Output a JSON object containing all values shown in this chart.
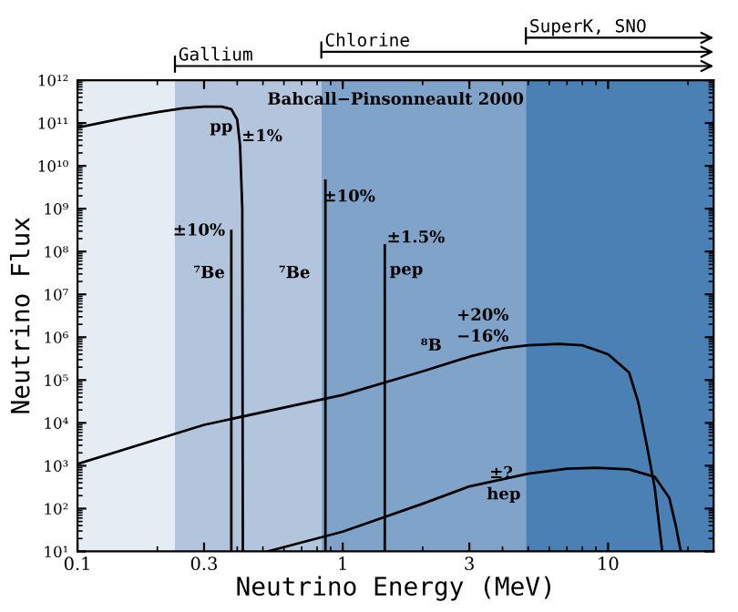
{
  "chart_data": {
    "type": "line",
    "title": "Bahcall−Pinsonneault 2000",
    "xlabel": "Neutrino Energy (MeV)",
    "ylabel": "Neutrino Flux",
    "log": "xy",
    "grid": false,
    "legend": false,
    "marker": "none",
    "line_style": "solid",
    "xlim": [
      0.1,
      25
    ],
    "ylim": [
      10,
      1000000000000.0
    ],
    "xticks": [
      0.1,
      0.3,
      1,
      3,
      10
    ],
    "yticks": [
      {
        "value": 10,
        "label": "10¹"
      },
      {
        "value": 100,
        "label": "10²"
      },
      {
        "value": 1000,
        "label": "10³"
      },
      {
        "value": 10000,
        "label": "10⁴"
      },
      {
        "value": 100000,
        "label": "10⁵"
      },
      {
        "value": 1000000,
        "label": "10⁶"
      },
      {
        "value": 10000000,
        "label": "10⁷"
      },
      {
        "value": 100000000,
        "label": "10⁸"
      },
      {
        "value": 1000000000,
        "label": "10⁹"
      },
      {
        "value": 10000000000,
        "label": "10¹⁰"
      },
      {
        "value": 100000000000,
        "label": "10¹¹"
      },
      {
        "value": 1000000000000,
        "label": "10¹²"
      }
    ],
    "bands": [
      {
        "axis": "x",
        "from": 0.1,
        "to": 0.233,
        "label": null,
        "color": "#e6ecf4"
      },
      {
        "axis": "x",
        "from": 0.233,
        "to": 0.83,
        "label": "Gallium",
        "color": "#b3c5dd"
      },
      {
        "axis": "x",
        "from": 0.83,
        "to": 4.9,
        "label": "Chlorine",
        "color": "#80a3ca"
      },
      {
        "axis": "x",
        "from": 4.9,
        "to": 25,
        "label": "SuperK, SNO",
        "color": "#4a80b4"
      }
    ],
    "series": [
      {
        "color": "#000000",
        "x": [
          0.1,
          0.15,
          0.2,
          0.25,
          0.3,
          0.35,
          0.38,
          0.4,
          0.41,
          0.418,
          0.42
        ],
        "values": [
          78000000000,
          130000000000,
          180000000000,
          220000000000,
          240000000000,
          240000000000,
          210000000000,
          120000000000,
          30000000000,
          1000000000,
          10
        ]
      },
      {
        "color": "#000000",
        "x": [
          0.38,
          0.38
        ],
        "values": [
          10,
          300000000
        ]
      },
      {
        "color": "#000000",
        "x": [
          0.86,
          0.86
        ],
        "values": [
          10,
          4500000000
        ]
      },
      {
        "color": "#000000",
        "x": [
          1.44,
          1.44
        ],
        "values": [
          10,
          140000000
        ]
      },
      {
        "color": "#000000",
        "x": [
          0.1,
          0.3,
          1,
          2,
          3,
          4,
          5,
          6.5,
          8,
          10,
          12,
          13,
          14,
          15,
          16
        ],
        "values": [
          1100,
          9000,
          45000,
          160000,
          350000,
          550000,
          650000,
          700000,
          650000,
          400000,
          150000,
          30000,
          3000,
          300,
          10
        ]
      },
      {
        "color": "#000000",
        "x": [
          0.52,
          1,
          2,
          3,
          5,
          7,
          9,
          12,
          15,
          17,
          18,
          18.8
        ],
        "values": [
          10,
          29,
          130,
          330,
          650,
          850,
          900,
          820,
          550,
          180,
          40,
          10
        ]
      }
    ],
    "annotations": [
      "pp",
      "±1%",
      "±10%",
      "⁷Be",
      "⁷Be",
      "±10%",
      "±1.5%",
      "pep",
      "+20%",
      "−16%",
      "⁸B",
      "±?",
      "hep"
    ]
  }
}
